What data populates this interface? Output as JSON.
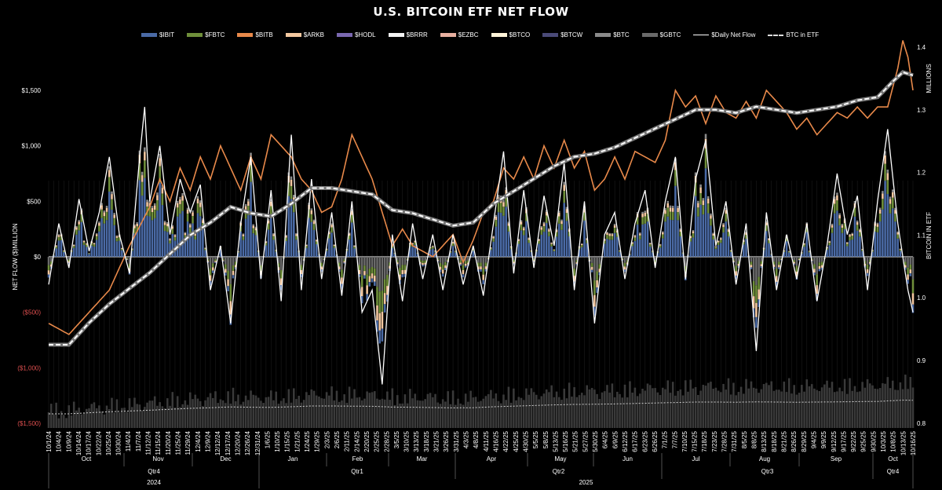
{
  "title": "U.S. BITCOIN ETF NET FLOW",
  "legend": [
    {
      "label": "$IBIT",
      "color": "#4a6aa5",
      "kind": "bar"
    },
    {
      "label": "$FBTC",
      "color": "#6f8f3a",
      "kind": "bar"
    },
    {
      "label": "$BITB",
      "color": "#e8894a",
      "kind": "bar"
    },
    {
      "label": "$ARKB",
      "color": "#f4c8a0",
      "kind": "bar"
    },
    {
      "label": "$HODL",
      "color": "#7a68b0",
      "kind": "bar"
    },
    {
      "label": "$BRRR",
      "color": "#f2f2f2",
      "kind": "bar"
    },
    {
      "label": "$EZBC",
      "color": "#e8b0a0",
      "kind": "bar"
    },
    {
      "label": "$BTCO",
      "color": "#fff4d8",
      "kind": "bar"
    },
    {
      "label": "$BTCW",
      "color": "#4a4a78",
      "kind": "bar"
    },
    {
      "label": "$BTC",
      "color": "#8a8a8a",
      "kind": "bar"
    },
    {
      "label": "$GBTC",
      "color": "#6a6a6a",
      "kind": "bar"
    },
    {
      "label": "$Daily Net Flow",
      "color": "#ffffff",
      "kind": "line"
    },
    {
      "label": "BTC in ETF",
      "color": "#dddddd",
      "kind": "dash"
    }
  ],
  "chart_data": {
    "type": "bar",
    "title": "U.S. BITCOIN ETF NET FLOW",
    "ylabel": "NET FLOW ($)MILLION",
    "y2label": "BITCOIN IN ETF",
    "y2unit": "MILLIONS",
    "ylim": [
      -1500,
      2000
    ],
    "y2lim": [
      0.8,
      1.4
    ],
    "y_ticks": [
      "$1,500",
      "$1,000",
      "$500",
      "$0",
      "($500)",
      "($1,000)",
      "($1,500)"
    ],
    "y_tick_values": [
      1500,
      1000,
      500,
      0,
      -500,
      -1000,
      -1500
    ],
    "y2_ticks": [
      "1.4",
      "1.3",
      "1.2",
      "1.1",
      "1.0",
      "0.9",
      "0.8"
    ],
    "y2_tick_values": [
      1.4,
      1.3,
      1.2,
      1.1,
      1.0,
      0.9,
      0.8
    ],
    "date_ticks": [
      "10/1/24",
      "10/4/24",
      "10/9/24",
      "10/14/24",
      "10/17/24",
      "10/22/24",
      "10/25/24",
      "10/30/24",
      "11/4/24",
      "11/7/24",
      "11/12/24",
      "11/15/24",
      "11/20/24",
      "11/25/24",
      "11/29/24",
      "12/4/24",
      "12/9/24",
      "12/12/24",
      "12/17/24",
      "12/20/24",
      "12/26/24",
      "12/31/24",
      "1/6/25",
      "1/10/25",
      "1/15/25",
      "1/21/25",
      "1/24/25",
      "1/29/25",
      "2/3/25",
      "2/6/25",
      "2/11/25",
      "2/14/25",
      "2/20/25",
      "2/25/25",
      "2/28/25",
      "3/5/25",
      "3/10/25",
      "3/13/25",
      "3/18/25",
      "3/21/25",
      "3/26/25",
      "3/31/25",
      "4/3/25",
      "4/8/25",
      "4/11/25",
      "4/16/25",
      "4/22/25",
      "4/25/25",
      "4/30/25",
      "5/5/25",
      "5/8/25",
      "5/13/25",
      "5/16/25",
      "5/21/25",
      "5/27/25",
      "5/30/25",
      "6/4/25",
      "6/9/25",
      "6/12/25",
      "6/17/25",
      "6/23/25",
      "6/26/25",
      "7/1/25",
      "7/7/25",
      "7/10/25",
      "7/15/25",
      "7/18/25",
      "7/23/25",
      "7/28/25",
      "7/31/25",
      "8/5/25",
      "8/8/25",
      "8/13/25",
      "8/18/25",
      "8/21/25",
      "8/26/25",
      "8/29/25",
      "9/4/25",
      "9/9/25",
      "9/12/25",
      "9/17/25",
      "9/22/25",
      "9/25/25",
      "9/30/25",
      "10/3/25",
      "10/8/25",
      "10/13/25",
      "10/16/25"
    ],
    "months": [
      "Oct",
      "Nov",
      "Dec",
      "Jan",
      "Feb",
      "Mar",
      "Apr",
      "May",
      "Jun",
      "Jul",
      "Aug",
      "Sep",
      "Oct"
    ],
    "quarters": [
      "Qtr4",
      "Qtr1",
      "Qtr2",
      "Qtr3",
      "Qtr4"
    ],
    "years": [
      "2024",
      "2025"
    ],
    "series": [
      {
        "name": "$Daily Net Flow",
        "type": "line",
        "axis": "y",
        "keypoints": [
          [
            0,
            -250
          ],
          [
            4,
            300
          ],
          [
            8,
            -100
          ],
          [
            12,
            520
          ],
          [
            16,
            50
          ],
          [
            20,
            400
          ],
          [
            24,
            900
          ],
          [
            28,
            200
          ],
          [
            32,
            -150
          ],
          [
            36,
            900
          ],
          [
            38,
            1350
          ],
          [
            40,
            500
          ],
          [
            44,
            1000
          ],
          [
            48,
            200
          ],
          [
            52,
            700
          ],
          [
            56,
            400
          ],
          [
            60,
            650
          ],
          [
            64,
            -300
          ],
          [
            68,
            100
          ],
          [
            72,
            -600
          ],
          [
            76,
            300
          ],
          [
            80,
            900
          ],
          [
            84,
            -200
          ],
          [
            88,
            600
          ],
          [
            92,
            -400
          ],
          [
            96,
            1100
          ],
          [
            100,
            -300
          ],
          [
            104,
            700
          ],
          [
            108,
            -200
          ],
          [
            112,
            400
          ],
          [
            116,
            -350
          ],
          [
            120,
            500
          ],
          [
            124,
            -500
          ],
          [
            128,
            -300
          ],
          [
            132,
            -1150
          ],
          [
            136,
            200
          ],
          [
            140,
            -400
          ],
          [
            144,
            300
          ],
          [
            148,
            -200
          ],
          [
            152,
            200
          ],
          [
            156,
            -300
          ],
          [
            160,
            200
          ],
          [
            164,
            -250
          ],
          [
            168,
            100
          ],
          [
            172,
            -350
          ],
          [
            176,
            300
          ],
          [
            180,
            950
          ],
          [
            184,
            -150
          ],
          [
            188,
            600
          ],
          [
            192,
            -100
          ],
          [
            196,
            550
          ],
          [
            200,
            100
          ],
          [
            204,
            850
          ],
          [
            208,
            -300
          ],
          [
            212,
            500
          ],
          [
            216,
            -600
          ],
          [
            220,
            200
          ],
          [
            224,
            400
          ],
          [
            228,
            -200
          ],
          [
            232,
            300
          ],
          [
            236,
            600
          ],
          [
            240,
            -100
          ],
          [
            244,
            500
          ],
          [
            248,
            900
          ],
          [
            252,
            -200
          ],
          [
            256,
            700
          ],
          [
            260,
            1050
          ],
          [
            264,
            100
          ],
          [
            268,
            500
          ],
          [
            272,
            -250
          ],
          [
            276,
            300
          ],
          [
            280,
            -850
          ],
          [
            284,
            400
          ],
          [
            288,
            -300
          ],
          [
            292,
            200
          ],
          [
            296,
            -200
          ],
          [
            300,
            300
          ],
          [
            304,
            -400
          ],
          [
            308,
            100
          ],
          [
            312,
            750
          ],
          [
            316,
            200
          ],
          [
            320,
            550
          ],
          [
            324,
            -300
          ],
          [
            328,
            500
          ],
          [
            332,
            1150
          ],
          [
            336,
            300
          ],
          [
            340,
            -300
          ],
          [
            342,
            -500
          ]
        ]
      },
      {
        "name": "$BITB",
        "type": "line",
        "axis": "y",
        "keypoints": [
          [
            0,
            -600
          ],
          [
            8,
            -700
          ],
          [
            16,
            -500
          ],
          [
            24,
            -300
          ],
          [
            32,
            100
          ],
          [
            40,
            450
          ],
          [
            44,
            700
          ],
          [
            48,
            500
          ],
          [
            52,
            800
          ],
          [
            56,
            600
          ],
          [
            60,
            900
          ],
          [
            64,
            700
          ],
          [
            68,
            1000
          ],
          [
            72,
            800
          ],
          [
            76,
            600
          ],
          [
            80,
            900
          ],
          [
            84,
            700
          ],
          [
            88,
            1100
          ],
          [
            92,
            1000
          ],
          [
            96,
            900
          ],
          [
            100,
            700
          ],
          [
            104,
            600
          ],
          [
            108,
            400
          ],
          [
            112,
            450
          ],
          [
            116,
            700
          ],
          [
            120,
            1100
          ],
          [
            124,
            900
          ],
          [
            128,
            700
          ],
          [
            132,
            400
          ],
          [
            136,
            100
          ],
          [
            140,
            250
          ],
          [
            144,
            100
          ],
          [
            148,
            50
          ],
          [
            152,
            0
          ],
          [
            156,
            100
          ],
          [
            160,
            200
          ],
          [
            164,
            -50
          ],
          [
            168,
            150
          ],
          [
            172,
            400
          ],
          [
            176,
            500
          ],
          [
            180,
            800
          ],
          [
            184,
            700
          ],
          [
            188,
            900
          ],
          [
            192,
            700
          ],
          [
            196,
            1000
          ],
          [
            200,
            800
          ],
          [
            204,
            1050
          ],
          [
            208,
            800
          ],
          [
            212,
            950
          ],
          [
            216,
            600
          ],
          [
            220,
            700
          ],
          [
            224,
            900
          ],
          [
            228,
            700
          ],
          [
            232,
            950
          ],
          [
            236,
            900
          ],
          [
            240,
            850
          ],
          [
            244,
            1050
          ],
          [
            248,
            1500
          ],
          [
            252,
            1350
          ],
          [
            256,
            1450
          ],
          [
            260,
            1200
          ],
          [
            264,
            1450
          ],
          [
            268,
            1300
          ],
          [
            272,
            1250
          ],
          [
            276,
            1400
          ],
          [
            280,
            1250
          ],
          [
            284,
            1500
          ],
          [
            288,
            1400
          ],
          [
            292,
            1300
          ],
          [
            296,
            1150
          ],
          [
            300,
            1250
          ],
          [
            304,
            1100
          ],
          [
            308,
            1200
          ],
          [
            312,
            1300
          ],
          [
            316,
            1250
          ],
          [
            320,
            1350
          ],
          [
            324,
            1250
          ],
          [
            328,
            1350
          ],
          [
            332,
            1350
          ],
          [
            336,
            1700
          ],
          [
            338,
            1950
          ],
          [
            340,
            1800
          ],
          [
            342,
            1500
          ]
        ]
      },
      {
        "name": "BTC in ETF",
        "type": "line",
        "axis": "y2",
        "keypoints": [
          [
            0,
            0.925
          ],
          [
            8,
            0.925
          ],
          [
            16,
            0.96
          ],
          [
            24,
            0.99
          ],
          [
            32,
            1.015
          ],
          [
            40,
            1.04
          ],
          [
            48,
            1.07
          ],
          [
            56,
            1.1
          ],
          [
            64,
            1.12
          ],
          [
            72,
            1.145
          ],
          [
            80,
            1.135
          ],
          [
            88,
            1.13
          ],
          [
            96,
            1.15
          ],
          [
            104,
            1.175
          ],
          [
            112,
            1.175
          ],
          [
            120,
            1.17
          ],
          [
            128,
            1.165
          ],
          [
            136,
            1.14
          ],
          [
            144,
            1.135
          ],
          [
            152,
            1.125
          ],
          [
            160,
            1.115
          ],
          [
            168,
            1.12
          ],
          [
            176,
            1.15
          ],
          [
            184,
            1.17
          ],
          [
            192,
            1.19
          ],
          [
            200,
            1.21
          ],
          [
            208,
            1.225
          ],
          [
            216,
            1.23
          ],
          [
            224,
            1.24
          ],
          [
            232,
            1.255
          ],
          [
            240,
            1.27
          ],
          [
            248,
            1.285
          ],
          [
            256,
            1.3
          ],
          [
            264,
            1.3
          ],
          [
            272,
            1.295
          ],
          [
            280,
            1.305
          ],
          [
            288,
            1.3
          ],
          [
            296,
            1.295
          ],
          [
            304,
            1.3
          ],
          [
            312,
            1.305
          ],
          [
            320,
            1.315
          ],
          [
            328,
            1.32
          ],
          [
            334,
            1.345
          ],
          [
            338,
            1.36
          ],
          [
            342,
            1.355
          ]
        ]
      }
    ]
  }
}
